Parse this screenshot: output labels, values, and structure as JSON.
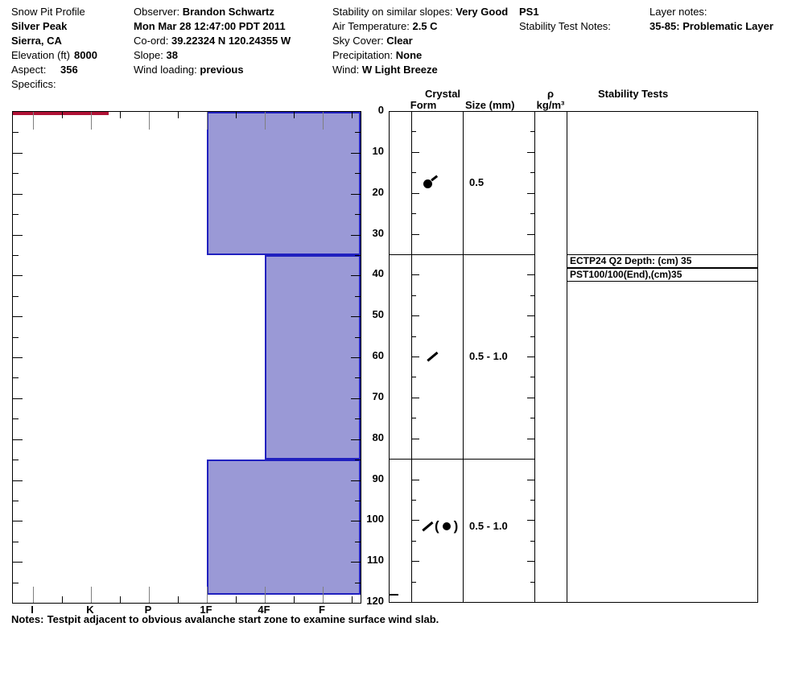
{
  "header": {
    "site": {
      "title": "Snow Pit Profile",
      "name": "Silver Peak",
      "region": "Sierra, CA",
      "elevation_label": "Elevation (ft)",
      "elevation": "8000",
      "aspect_label": "Aspect:",
      "aspect": "356",
      "specifics_label": "Specifics:"
    },
    "observation": {
      "observer_label": "Observer:",
      "observer": "Brandon Schwartz",
      "datetime": "Mon Mar 28 12:47:00 PDT 2011",
      "coord_label": "Co-ord:",
      "coord": "39.22324 N 120.24355 W",
      "slope_label": "Slope:",
      "slope": "38",
      "wind_loading_label": "Wind loading:",
      "wind_loading": "previous"
    },
    "conditions": {
      "stability_label": "Stability on similar slopes:",
      "stability": "Very Good",
      "air_temp_label": "Air Temperature:",
      "air_temp": "2.5 C",
      "sky_label": "Sky Cover:",
      "sky": "Clear",
      "precip_label": "Precipitation:",
      "precip": "None",
      "wind_label": "Wind:",
      "wind": "W Light Breeze"
    },
    "tests": {
      "id": "PS1",
      "notes_label": "Stability Test Notes:"
    },
    "layer_notes": {
      "label": "Layer notes:",
      "note": "35-85: Problematic Layer"
    }
  },
  "columns": {
    "crystal": "Crystal",
    "form": "Form",
    "size": "Size (mm)",
    "rho": "ρ",
    "rho_units": "kg/m³",
    "stability": "Stability Tests"
  },
  "notes": {
    "label": "Notes:",
    "text": "Testpit adjacent to obvious avalanche start zone to examine surface wind slab."
  },
  "chart_data": {
    "type": "bar",
    "title": "Snow pit hardness profile",
    "orientation": "horizontal-layers",
    "hardness_categories": [
      "I",
      "K",
      "P",
      "1F",
      "4F",
      "F"
    ],
    "depth_axis": {
      "unit": "cm",
      "min": 0,
      "max": 120,
      "tick_major": 10,
      "tick_minor": 5
    },
    "pit_depth_cm": 118,
    "layers": [
      {
        "top_cm": 0,
        "bottom_cm": 35,
        "hardness": "1F",
        "form_symbol": "circle-tail",
        "grain_size_mm": "0.5",
        "problematic": false
      },
      {
        "top_cm": 35,
        "bottom_cm": 85,
        "hardness": "4F",
        "form_symbol": "slash",
        "grain_size_mm": "0.5 - 1.0",
        "problematic": true
      },
      {
        "top_cm": 85,
        "bottom_cm": 118,
        "hardness": "1F",
        "form_symbol": "slash-paren-circle",
        "grain_size_mm": "0.5 - 1.0",
        "problematic": false
      }
    ],
    "problematic_interface_cm": 35,
    "stability_tests": [
      {
        "label": "ECTP24 Q2 Depth: (cm) 35",
        "depth_cm": 35
      },
      {
        "label": "PST100/100(End),(cm)35",
        "depth_cm": 35
      }
    ],
    "legend_position": "none",
    "grid": false,
    "colors": {
      "layer_fill": "#9a99d6",
      "layer_border": "#2020bf",
      "problem_line": "#b01236",
      "axis": "#000000",
      "major_tick": "#7f7f7f"
    }
  }
}
